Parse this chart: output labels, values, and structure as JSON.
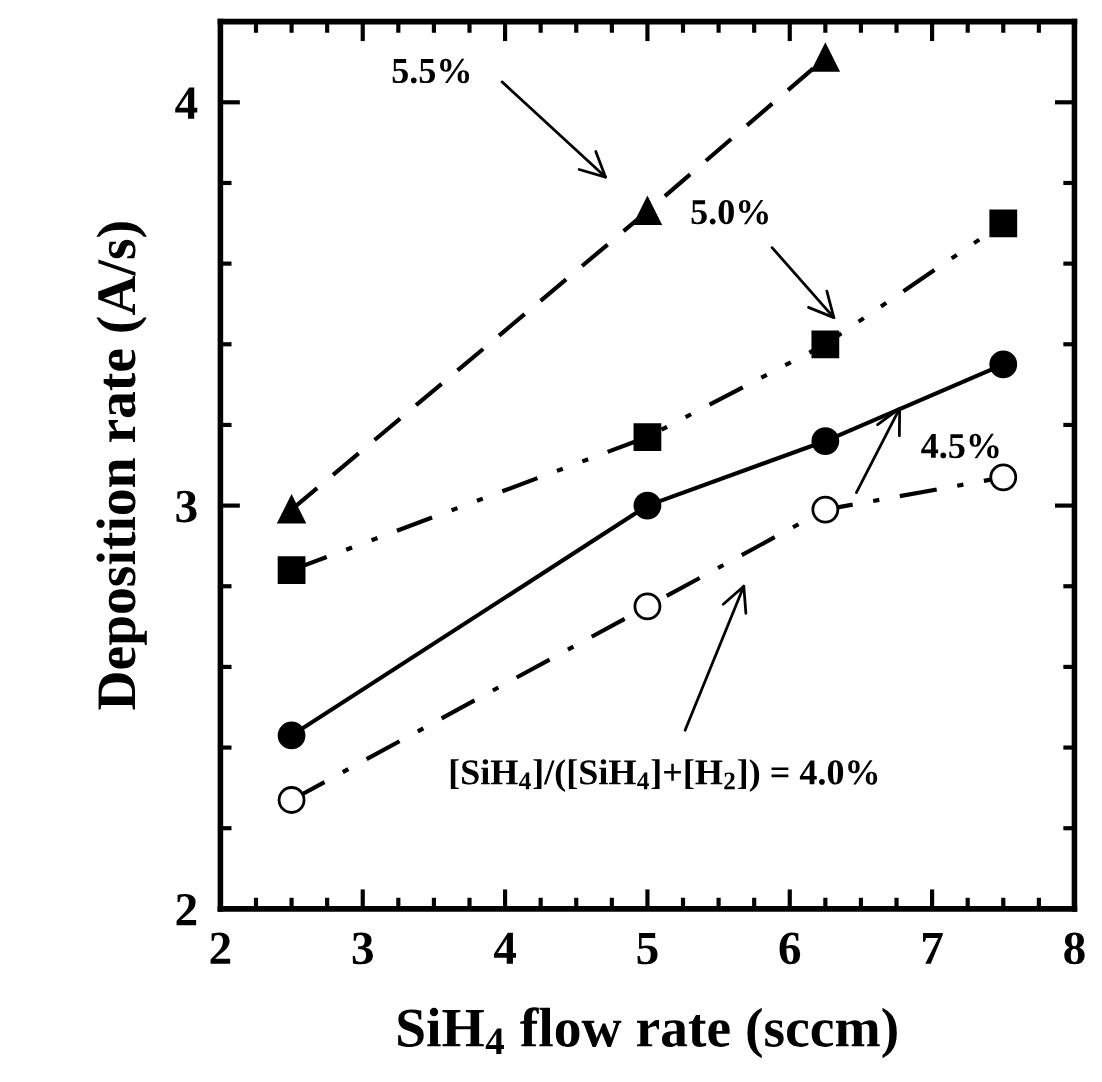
{
  "chart_data": {
    "type": "line",
    "xlabel": "SiH$_{4}$ flow rate (sccm)",
    "ylabel": "Deposition rate (A/s)",
    "xlim": [
      2,
      8
    ],
    "ylim": [
      2,
      4.2
    ],
    "xticks": [
      2,
      3,
      4,
      5,
      6,
      7,
      8
    ],
    "yticks": [
      2,
      3,
      4
    ],
    "grid": false,
    "legend": false,
    "series": [
      {
        "x": [
          2.5,
          5,
          6.25
        ],
        "values": [
          2.99,
          3.73,
          4.11
        ],
        "color": "#000000",
        "marker": "triangle",
        "line_style": "dashed"
      },
      {
        "x": [
          2.5,
          5,
          6.25,
          7.5
        ],
        "values": [
          2.84,
          3.17,
          3.4,
          3.7
        ],
        "color": "#000000",
        "marker": "square",
        "line_style": "dashdotdot"
      },
      {
        "x": [
          2.5,
          5,
          6.25,
          7.5
        ],
        "values": [
          2.43,
          3.0,
          3.16,
          3.35
        ],
        "color": "#000000",
        "marker": "circle",
        "line_style": "solid"
      },
      {
        "x": [
          2.5,
          5,
          6.25,
          7.5
        ],
        "values": [
          2.27,
          2.75,
          2.99,
          3.07
        ],
        "color": "#000000",
        "marker": "open circle",
        "line_style": "dashdot"
      }
    ],
    "annotations": [
      "5.5%",
      "5.0%",
      "4.5%",
      "[SiH$_{4}$]/([SiH$_{4}$]+[H$_{2}$]) = 4.0%"
    ]
  }
}
